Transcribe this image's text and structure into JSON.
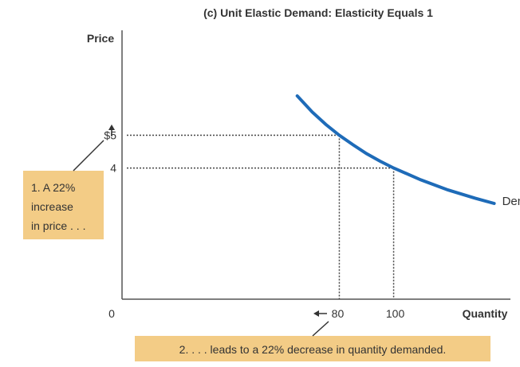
{
  "chart_data": {
    "type": "line",
    "title": "(c) Unit Elastic Demand: Elasticity Equals 1",
    "xlabel": "Quantity",
    "ylabel": "Price",
    "origin_label": "0",
    "x_tick_labels": [
      "80",
      "100"
    ],
    "y_tick_labels": [
      "$5",
      "4"
    ],
    "series": [
      {
        "name": "Demand",
        "x": [
          64.5,
          70,
          75,
          80,
          85,
          90,
          95,
          100,
          110,
          120,
          130,
          137
        ],
        "y": [
          6.2,
          5.71,
          5.33,
          5.0,
          4.71,
          4.44,
          4.21,
          4.0,
          3.64,
          3.33,
          3.08,
          2.92
        ]
      }
    ],
    "reference_points": [
      {
        "x": 80,
        "y": 5
      },
      {
        "x": 100,
        "y": 4
      }
    ],
    "xlim": [
      0,
      143
    ],
    "ylim": [
      0,
      8.2
    ],
    "grid": false,
    "line_color": "#1e6bb8",
    "annotations": [
      {
        "lines": [
          "1. A 22%",
          "increase",
          "in price . . ."
        ]
      },
      {
        "lines": [
          "2. . . . leads to a 22% decrease in quantity demanded."
        ]
      }
    ],
    "annotation_color": "#f3cc86"
  }
}
